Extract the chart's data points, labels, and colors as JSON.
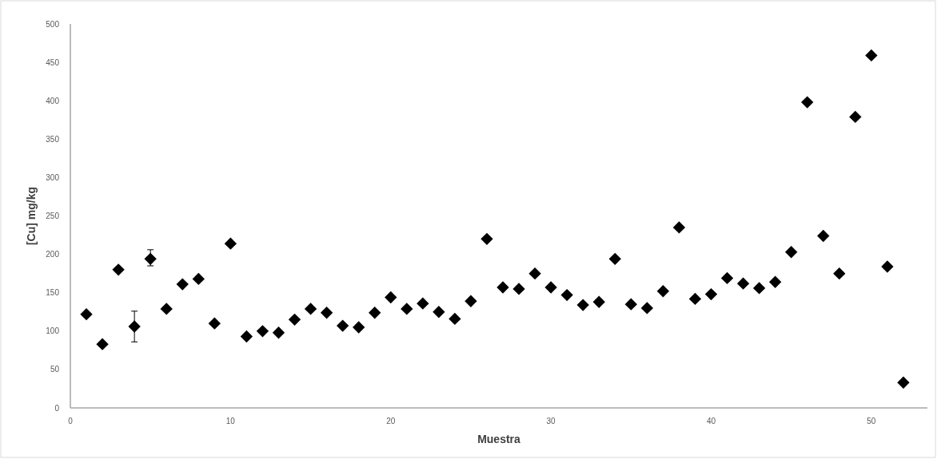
{
  "chart_data": {
    "type": "scatter",
    "xlabel": "Muestra",
    "ylabel": "[Cu] mg/kg",
    "x": [
      1,
      2,
      3,
      4,
      5,
      6,
      7,
      8,
      9,
      10,
      11,
      12,
      13,
      14,
      15,
      16,
      17,
      18,
      19,
      20,
      21,
      22,
      23,
      24,
      25,
      26,
      27,
      28,
      29,
      30,
      31,
      32,
      33,
      34,
      35,
      36,
      37,
      38,
      39,
      40,
      41,
      42,
      43,
      44,
      45,
      46,
      47,
      48,
      49,
      50,
      51,
      52
    ],
    "values": [
      122,
      83,
      180,
      106,
      194,
      129,
      161,
      168,
      110,
      214,
      93,
      100,
      98,
      115,
      129,
      124,
      107,
      105,
      124,
      144,
      129,
      136,
      125,
      116,
      139,
      220,
      157,
      155,
      175,
      157,
      147,
      134,
      138,
      194,
      135,
      130,
      152,
      235,
      142,
      148,
      169,
      162,
      156,
      164,
      203,
      398,
      224,
      175,
      379,
      459,
      184,
      33
    ],
    "errors": [
      null,
      null,
      null,
      [
        86,
        126
      ],
      [
        185,
        206
      ],
      null,
      null,
      null,
      null,
      null,
      null,
      null,
      null,
      null,
      null,
      null,
      null,
      null,
      null,
      null,
      null,
      null,
      null,
      null,
      null,
      null,
      null,
      null,
      null,
      null,
      null,
      null,
      null,
      null,
      null,
      null,
      null,
      null,
      null,
      null,
      null,
      null,
      null,
      null,
      null,
      null,
      null,
      null,
      null,
      null,
      null,
      null
    ],
    "color": "#000000",
    "marker": "diamond",
    "xlim": [
      0,
      53.5
    ],
    "xticks": [
      0,
      10,
      20,
      30,
      40,
      50
    ],
    "ylim": [
      0,
      500
    ],
    "yticks": [
      0,
      50,
      100,
      150,
      200,
      250,
      300,
      350,
      400,
      450,
      500
    ],
    "grid": false
  }
}
